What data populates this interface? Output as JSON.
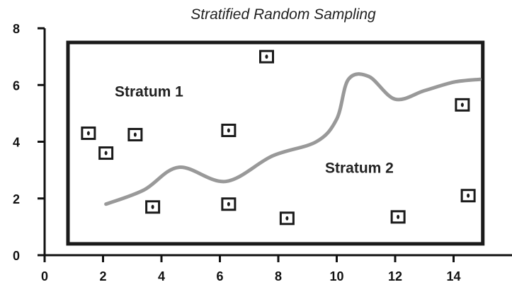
{
  "title": "Stratified Random Sampling",
  "x_axis": {
    "min": 0,
    "max": 15,
    "ticks": [
      0,
      2,
      4,
      6,
      8,
      10,
      12,
      14
    ],
    "tick_labels": [
      "0",
      "2",
      "4",
      "6",
      "8",
      "10",
      "12",
      "14"
    ]
  },
  "y_axis": {
    "min": 0,
    "max": 8,
    "ticks": [
      0,
      2,
      4,
      6,
      8
    ],
    "tick_labels": [
      "0",
      "2",
      "4",
      "6",
      "8"
    ]
  },
  "study_area": {
    "x_min": 0.8,
    "x_max": 15.0,
    "y_min": 0.4,
    "y_max": 7.5
  },
  "strata": [
    {
      "label": "Stratum 1",
      "x": 2.4,
      "y": 5.6
    },
    {
      "label": "Stratum 2",
      "x": 9.6,
      "y": 2.9
    }
  ],
  "boundary_curve": [
    [
      2.1,
      1.8
    ],
    [
      3.4,
      2.3
    ],
    [
      4.6,
      3.1
    ],
    [
      6.2,
      2.6
    ],
    [
      7.8,
      3.5
    ],
    [
      9.3,
      4.0
    ],
    [
      10.0,
      4.8
    ],
    [
      10.4,
      6.2
    ],
    [
      11.1,
      6.3
    ],
    [
      12.0,
      5.5
    ],
    [
      13.0,
      5.8
    ],
    [
      14.0,
      6.1
    ],
    [
      14.9,
      6.2
    ]
  ],
  "samples": [
    [
      1.5,
      4.3
    ],
    [
      2.1,
      3.6
    ],
    [
      3.1,
      4.25
    ],
    [
      3.7,
      1.7
    ],
    [
      6.3,
      4.4
    ],
    [
      6.3,
      1.8
    ],
    [
      7.6,
      7.0
    ],
    [
      8.3,
      1.3
    ],
    [
      12.1,
      1.35
    ],
    [
      14.3,
      5.3
    ],
    [
      14.5,
      2.1
    ]
  ],
  "colors": {
    "frame": "#1a1a1a",
    "curve": "#999999",
    "marker": "#1a1a1a",
    "axis": "#111111"
  }
}
